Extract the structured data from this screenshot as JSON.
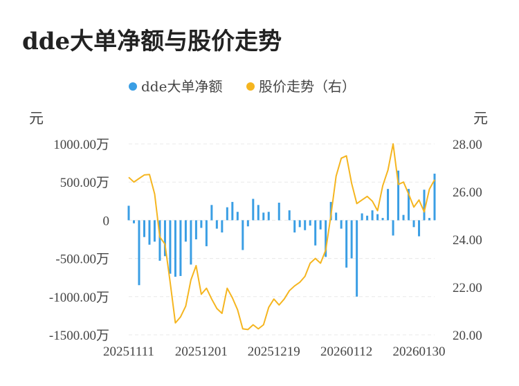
{
  "title": "dde大单净额与股价走势",
  "chart_data": {
    "type": "bar+line",
    "colors": {
      "bar": "#3a9ee4",
      "line": "#f5b51f",
      "grid": "#e8e8e8",
      "axis": "#444444"
    },
    "legend": {
      "placement": "top-center",
      "items": [
        "dde大单净额",
        "股价走势（右）"
      ]
    },
    "left_axis": {
      "unit": "元",
      "ticks": [
        1000,
        500,
        0,
        -500,
        -1000,
        -1500
      ],
      "tick_labels": [
        "1000.00万",
        "500.00万",
        "0",
        "-500.00万",
        "-1000.00万",
        "-1500.00万"
      ],
      "range": [
        -1500,
        1000
      ],
      "scale": "万"
    },
    "right_axis": {
      "unit": "元",
      "ticks": [
        28,
        26,
        24,
        22,
        20
      ],
      "tick_labels": [
        "28.00",
        "26.00",
        "24.00",
        "22.00",
        "20.00"
      ],
      "range": [
        20,
        28
      ]
    },
    "x_tick_labels": [
      "20251111",
      "20251201",
      "20251219",
      "20260112",
      "20260130"
    ],
    "x_tick_index": [
      0,
      14,
      28,
      42,
      56
    ],
    "grid": true,
    "series": [
      {
        "name": "dde大单净额",
        "type": "bar",
        "axis": "left",
        "values": [
          190,
          -40,
          -850,
          -220,
          -320,
          -280,
          -530,
          -470,
          -700,
          -740,
          -730,
          -280,
          -580,
          -250,
          -100,
          -340,
          200,
          -110,
          -160,
          170,
          240,
          110,
          -390,
          -80,
          280,
          200,
          100,
          110,
          0,
          230,
          0,
          130,
          -160,
          -90,
          -130,
          -70,
          -330,
          -120,
          -480,
          240,
          100,
          -110,
          -620,
          -500,
          -1000,
          90,
          60,
          130,
          80,
          30,
          410,
          -200,
          650,
          70,
          410,
          -90,
          -210,
          400,
          30,
          610
        ]
      },
      {
        "name": "股价走势（右）",
        "type": "line",
        "axis": "right",
        "values": [
          26.6,
          26.4,
          26.55,
          26.7,
          26.72,
          25.9,
          24.1,
          23.8,
          22.2,
          20.5,
          20.75,
          21.2,
          22.3,
          22.9,
          21.7,
          21.95,
          21.5,
          21.1,
          20.9,
          21.95,
          21.55,
          21.05,
          20.25,
          20.22,
          20.42,
          20.25,
          20.42,
          21.15,
          21.5,
          21.25,
          21.5,
          21.85,
          22.05,
          22.2,
          22.45,
          23.0,
          23.2,
          23.0,
          23.55,
          25.0,
          26.65,
          27.4,
          27.5,
          26.35,
          25.5,
          25.65,
          25.8,
          25.6,
          25.2,
          26.25,
          26.9,
          28.0,
          26.3,
          26.4,
          25.9,
          25.35,
          25.65,
          25.15,
          26.1,
          26.5
        ]
      }
    ]
  }
}
